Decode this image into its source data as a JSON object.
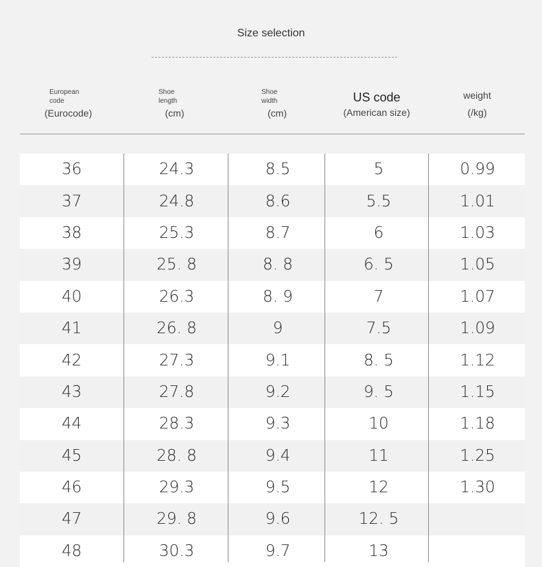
{
  "title": "Size selection",
  "headers": {
    "eu": {
      "line1": "European",
      "line2": "code",
      "line3": "(Eurocode)"
    },
    "length": {
      "line1": "Shoe",
      "line2": "length",
      "line3": "(cm)"
    },
    "width": {
      "line1": "Shoe",
      "line2": "width",
      "line3": "(cm)"
    },
    "us": {
      "line1": "US code",
      "line3": "(American size)"
    },
    "weight": {
      "line1": "weight",
      "line3": "(/kg)"
    }
  },
  "rows": [
    {
      "eu": "36",
      "length": "24.3",
      "width": "8.5",
      "us": "5",
      "weight": "0.99"
    },
    {
      "eu": "37",
      "length": "24.8",
      "width": "8.6",
      "us": "5.5",
      "weight": "1.01"
    },
    {
      "eu": "38",
      "length": "25.3",
      "width": "8.7",
      "us": "6",
      "weight": "1.03"
    },
    {
      "eu": "39",
      "length": "25. 8",
      "width": "8. 8",
      "us": "6. 5",
      "weight": "1.05"
    },
    {
      "eu": "40",
      "length": "26.3",
      "width": "8. 9",
      "us": "7",
      "weight": "1.07"
    },
    {
      "eu": "41",
      "length": "26. 8",
      "width": "9",
      "us": "7.5",
      "weight": "1.09"
    },
    {
      "eu": "42",
      "length": "27.3",
      "width": "9.1",
      "us": "8. 5",
      "weight": "1.12"
    },
    {
      "eu": "43",
      "length": "27.8",
      "width": "9.2",
      "us": "9. 5",
      "weight": "1.15"
    },
    {
      "eu": "44",
      "length": "28.3",
      "width": "9.3",
      "us": "10",
      "weight": "1.18"
    },
    {
      "eu": "45",
      "length": "28. 8",
      "width": "9.4",
      "us": "11",
      "weight": "1.25"
    },
    {
      "eu": "46",
      "length": "29.3",
      "width": "9.5",
      "us": "12",
      "weight": "1.30"
    },
    {
      "eu": "47",
      "length": "29. 8",
      "width": "9.6",
      "us": "12. 5",
      "weight": ""
    },
    {
      "eu": "48",
      "length": "30.3",
      "width": "9.7",
      "us": "13",
      "weight": ""
    }
  ]
}
